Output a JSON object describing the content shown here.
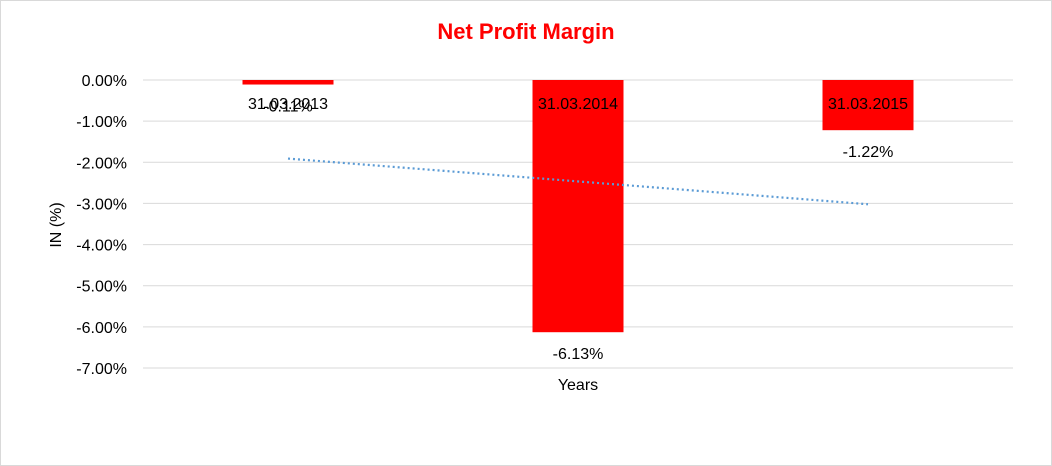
{
  "chart_data": {
    "type": "bar",
    "title": "Net Profit Margin",
    "xlabel": "Years",
    "ylabel": "IN (%)",
    "categories": [
      "31.03.2013",
      "31.03.2014",
      "31.03.2015"
    ],
    "values": [
      -0.11,
      -6.13,
      -1.22
    ],
    "data_labels": [
      "-0.11%",
      "-6.13%",
      "-1.22%"
    ],
    "ylim": [
      -7,
      0
    ],
    "yticks": [
      0,
      -1,
      -2,
      -3,
      -4,
      -5,
      -6,
      -7
    ],
    "ytick_labels": [
      "0.00%",
      "-1.00%",
      "-2.00%",
      "-3.00%",
      "-4.00%",
      "-5.00%",
      "-6.00%",
      "-7.00%"
    ],
    "trendline": {
      "type": "linear",
      "start": -1.91,
      "end": -3.02,
      "style": "dotted"
    },
    "grid": true,
    "legend": "none",
    "colors": {
      "bar": "#ff0000",
      "title": "#ff0000",
      "trendline": "#5b9bd5",
      "grid": "#d9d9d9"
    }
  }
}
